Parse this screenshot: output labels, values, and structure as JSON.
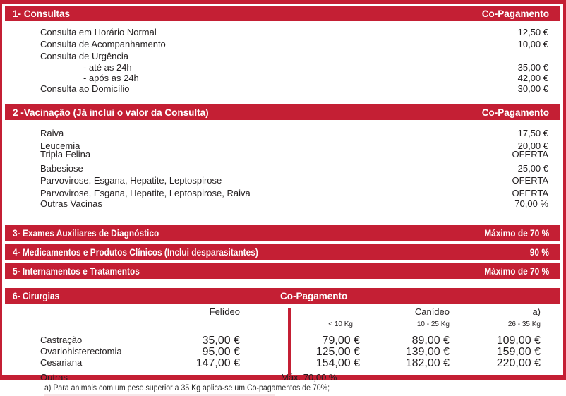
{
  "accent_color": "#c41f34",
  "sections": {
    "consultas": {
      "title": "1- Consultas",
      "header_right": "Co-Pagamento",
      "rows": [
        {
          "label": "Consulta em Horário Normal",
          "value": "12,50 €"
        },
        {
          "label": "Consulta de Acompanhamento",
          "value": "10,00 €"
        },
        {
          "label": "Consulta de Urgência",
          "value": ""
        },
        {
          "label": "- até as 24h",
          "value": "35,00 €"
        },
        {
          "label": "- após as 24h",
          "value": "42,00 €"
        },
        {
          "label": "Consulta ao Domicílio",
          "value": "30,00 €"
        }
      ]
    },
    "vacinacao": {
      "title": "2 -Vacinação  (Já inclui o valor da Consulta)",
      "header_right": "Co-Pagamento",
      "rows": [
        {
          "label": "Raiva",
          "value": "17,50 €"
        },
        {
          "label": "Leucemia",
          "value": "20,00 €"
        },
        {
          "label": "Tripla Felina",
          "value": "OFERTA"
        },
        {
          "label": "Babesiose",
          "value": "25,00 €"
        },
        {
          "label": "Parvovirose, Esgana, Hepatite, Leptospirose",
          "value": "OFERTA"
        },
        {
          "label": "Parvovirose, Esgana, Hepatite, Leptospirose, Raiva",
          "value": "OFERTA"
        },
        {
          "label": "Outras Vacinas",
          "value": "70,00 %"
        }
      ]
    },
    "exames": {
      "title": "3- Exames Auxiliares de Diagnóstico",
      "value": "Máximo de 70 %"
    },
    "medicamentos": {
      "title": "4- Medicamentos e Produtos Clínicos (Inclui desparasitantes)",
      "value": "90 %"
    },
    "internamentos": {
      "title": "5- Internamentos e Tratamentos",
      "value": "Máximo de 70 %"
    },
    "cirurgias": {
      "title": "6- Cirurgias",
      "header_center": "Co-Pagamento",
      "columns": {
        "felideo": "Felídeo",
        "canideo": "Canídeo",
        "note_ref": "a)",
        "sub_lt10": "< 10 Kg",
        "sub_10_25": "10 - 25 Kg",
        "sub_26_35": "26 - 35 Kg"
      },
      "rows": [
        {
          "label": "Castração",
          "felideo": "35,00 €",
          "lt10": "79,00 €",
          "kg10_25": "89,00 €",
          "kg26_35": "109,00 €"
        },
        {
          "label": "Ovariohisterectomia",
          "felideo": "95,00 €",
          "lt10": "125,00 €",
          "kg10_25": "139,00 €",
          "kg26_35": "159,00 €"
        },
        {
          "label": "Cesariana",
          "felideo": "147,00 €",
          "lt10": "154,00 €",
          "kg10_25": "182,00 €",
          "kg26_35": "220,00 €"
        }
      ],
      "outras_label": "Outras",
      "outras_value": "Máx. 70,00 %"
    }
  },
  "footnote": "a) Para animais com um peso superior a 35 Kg aplica-se um Co-pagamentos de 70%;"
}
